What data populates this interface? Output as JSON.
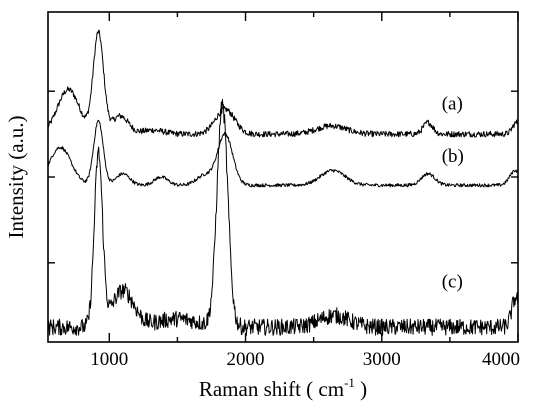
{
  "chart_data": {
    "type": "line",
    "xlabel_main": "Raman shift ( cm",
    "xlabel_sup": "-1",
    "xlabel_end": " )",
    "ylabel": "Intensity (a.u.)",
    "xlim": [
      550,
      4000
    ],
    "x_ticks": [
      1000,
      2000,
      3000,
      4000
    ],
    "x_tick_labels": [
      "1000",
      "2000",
      "3000",
      "4000"
    ],
    "x_minor_ticks": [
      500,
      1500,
      2500,
      3500
    ],
    "ylim": [
      0,
      10
    ],
    "y_ticks": [
      2.4,
      5.0,
      7.6
    ],
    "grid": false,
    "series": [
      {
        "name": "(a)",
        "baseline": 6.3,
        "noise": 0.09,
        "peaks": [
          [
            700,
            1.35,
            80
          ],
          [
            920,
            3.05,
            38
          ],
          [
            1080,
            0.55,
            60
          ],
          [
            1320,
            0.12,
            80
          ],
          [
            1850,
            0.75,
            70
          ],
          [
            2630,
            0.25,
            110
          ],
          [
            3340,
            0.35,
            35
          ],
          [
            3990,
            0.35,
            30
          ]
        ],
        "label_pos": [
          3440,
          7.05
        ]
      },
      {
        "name": "(b)",
        "baseline": 4.75,
        "noise": 0.05,
        "peaks": [
          [
            640,
            1.15,
            80
          ],
          [
            920,
            1.95,
            35
          ],
          [
            1100,
            0.35,
            50
          ],
          [
            1380,
            0.25,
            50
          ],
          [
            1700,
            0.3,
            60
          ],
          [
            1850,
            1.55,
            55
          ],
          [
            2640,
            0.45,
            90
          ],
          [
            3340,
            0.35,
            50
          ],
          [
            3980,
            0.45,
            40
          ]
        ],
        "label_pos": [
          3440,
          5.45
        ]
      },
      {
        "name": "(c)",
        "baseline": 0.45,
        "noise": 0.25,
        "peaks": [
          [
            920,
            5.2,
            30
          ],
          [
            1100,
            1.1,
            80
          ],
          [
            1500,
            0.25,
            150
          ],
          [
            1830,
            6.7,
            40
          ],
          [
            2650,
            0.35,
            110
          ],
          [
            3985,
            0.9,
            30
          ]
        ],
        "label_pos": [
          3440,
          1.65
        ]
      }
    ]
  }
}
